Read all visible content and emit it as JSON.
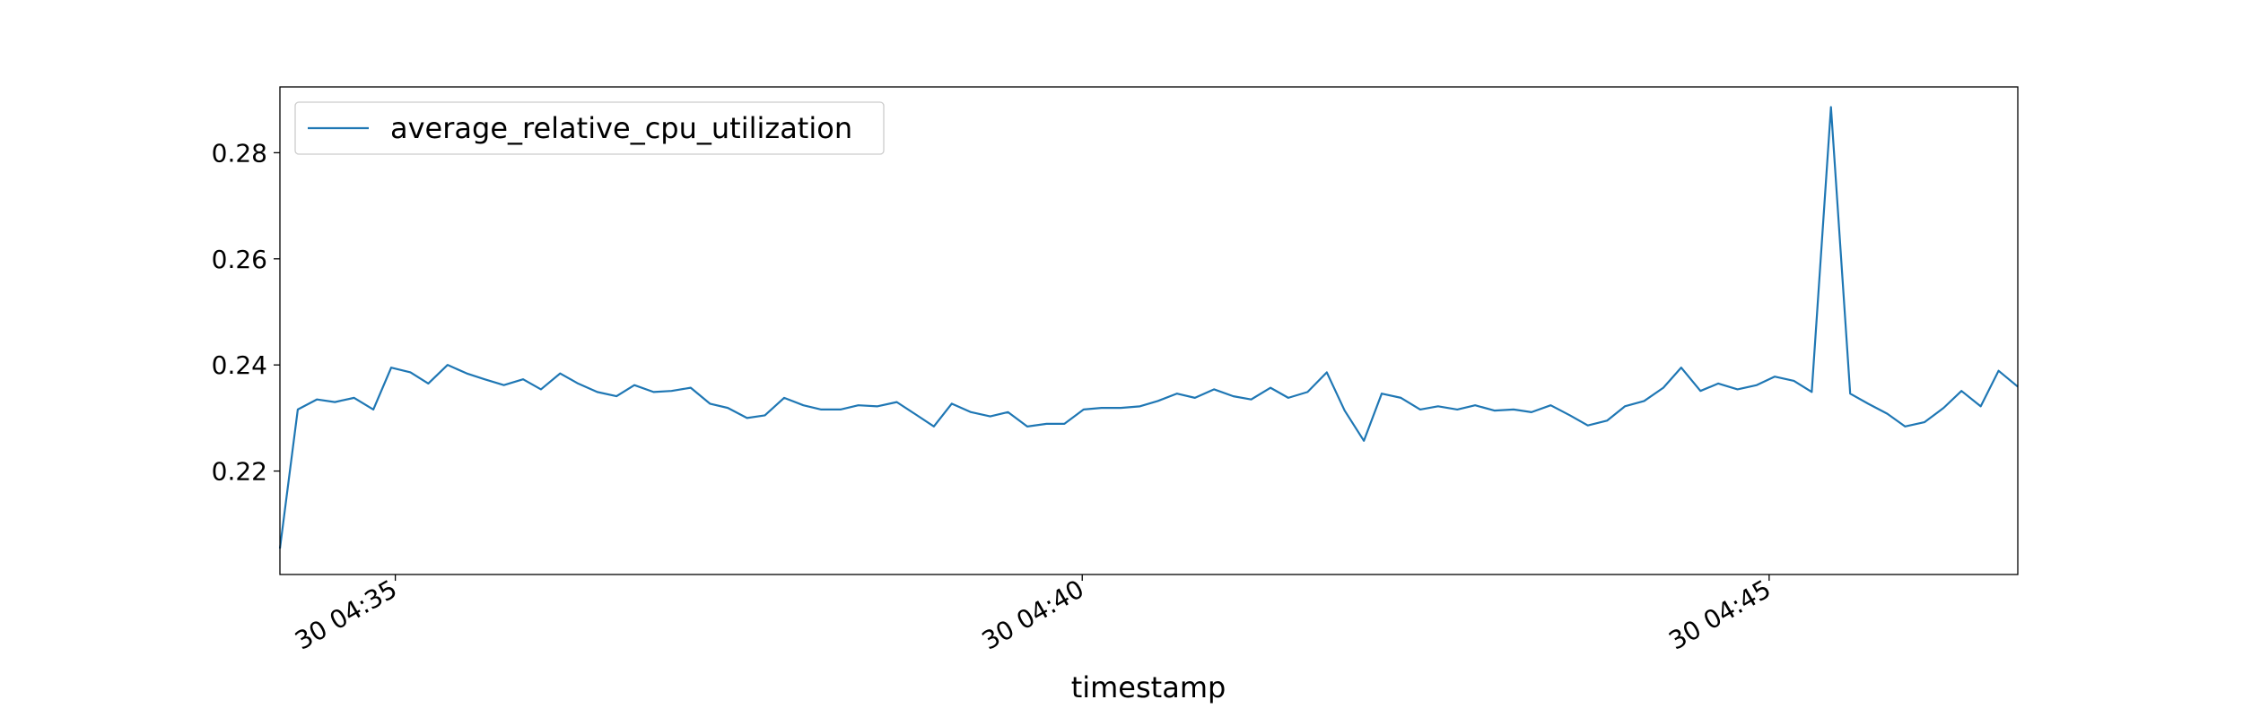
{
  "chart_data": {
    "type": "line",
    "xlabel": "timestamp",
    "xlim": [
      34.16,
      46.81
    ],
    "xticks": [
      {
        "value": 35,
        "label": "30 04:35"
      },
      {
        "value": 40,
        "label": "30 04:40"
      },
      {
        "value": 45,
        "label": "30 04:45"
      }
    ],
    "ylim": [
      0.2005,
      0.2924
    ],
    "yticks": [
      0.22,
      0.24,
      0.26,
      0.28
    ],
    "legend": "upper left",
    "x": [
      34.16,
      34.29,
      34.43,
      34.56,
      34.7,
      34.84,
      34.97,
      35.11,
      35.24,
      35.38,
      35.52,
      35.65,
      35.79,
      35.93,
      36.06,
      36.2,
      36.33,
      36.47,
      36.61,
      36.74,
      36.88,
      37.01,
      37.15,
      37.29,
      37.42,
      37.56,
      37.69,
      37.83,
      37.97,
      38.1,
      38.24,
      38.37,
      38.51,
      38.65,
      38.78,
      38.92,
      39.05,
      39.19,
      39.33,
      39.46,
      39.6,
      39.74,
      39.87,
      40.01,
      40.14,
      40.28,
      40.42,
      40.55,
      40.69,
      40.82,
      40.96,
      41.1,
      41.23,
      41.37,
      41.5,
      41.64,
      41.78,
      41.91,
      42.05,
      42.18,
      42.32,
      42.46,
      42.59,
      42.73,
      42.86,
      43.0,
      43.14,
      43.27,
      43.41,
      43.55,
      43.68,
      43.82,
      43.95,
      44.09,
      44.23,
      44.36,
      44.5,
      44.63,
      44.77,
      44.91,
      45.04,
      45.18,
      45.31,
      45.45,
      45.59,
      45.72,
      45.86,
      45.99,
      46.13,
      46.27,
      46.4,
      46.54,
      46.67,
      46.81
    ],
    "series": [
      {
        "name": "average_relative_cpu_utilization",
        "color": "#1f77b4",
        "values": [
          0.2054,
          0.2316,
          0.2335,
          0.233,
          0.2338,
          0.2316,
          0.2395,
          0.2386,
          0.2365,
          0.24,
          0.2384,
          0.2373,
          0.2362,
          0.2373,
          0.2354,
          0.2384,
          0.2365,
          0.2349,
          0.2341,
          0.2362,
          0.2349,
          0.2351,
          0.2357,
          0.2327,
          0.2319,
          0.23,
          0.2305,
          0.2338,
          0.2324,
          0.2316,
          0.2316,
          0.2324,
          0.2322,
          0.233,
          0.2308,
          0.2284,
          0.2327,
          0.2311,
          0.2303,
          0.2311,
          0.2284,
          0.2289,
          0.2289,
          0.2316,
          0.2319,
          0.2319,
          0.2322,
          0.2332,
          0.2346,
          0.2338,
          0.2354,
          0.2341,
          0.2335,
          0.2357,
          0.2338,
          0.2349,
          0.2386,
          0.2314,
          0.2257,
          0.2346,
          0.2338,
          0.2316,
          0.2322,
          0.2316,
          0.2324,
          0.2314,
          0.2316,
          0.2311,
          0.2324,
          0.2305,
          0.2286,
          0.2295,
          0.2322,
          0.2332,
          0.2357,
          0.2395,
          0.2351,
          0.2365,
          0.2354,
          0.2362,
          0.2378,
          0.237,
          0.2349,
          0.2886,
          0.2346,
          0.2327,
          0.2308,
          0.2284,
          0.2292,
          0.2319,
          0.2351,
          0.2322,
          0.2389,
          0.2359
        ]
      }
    ]
  }
}
